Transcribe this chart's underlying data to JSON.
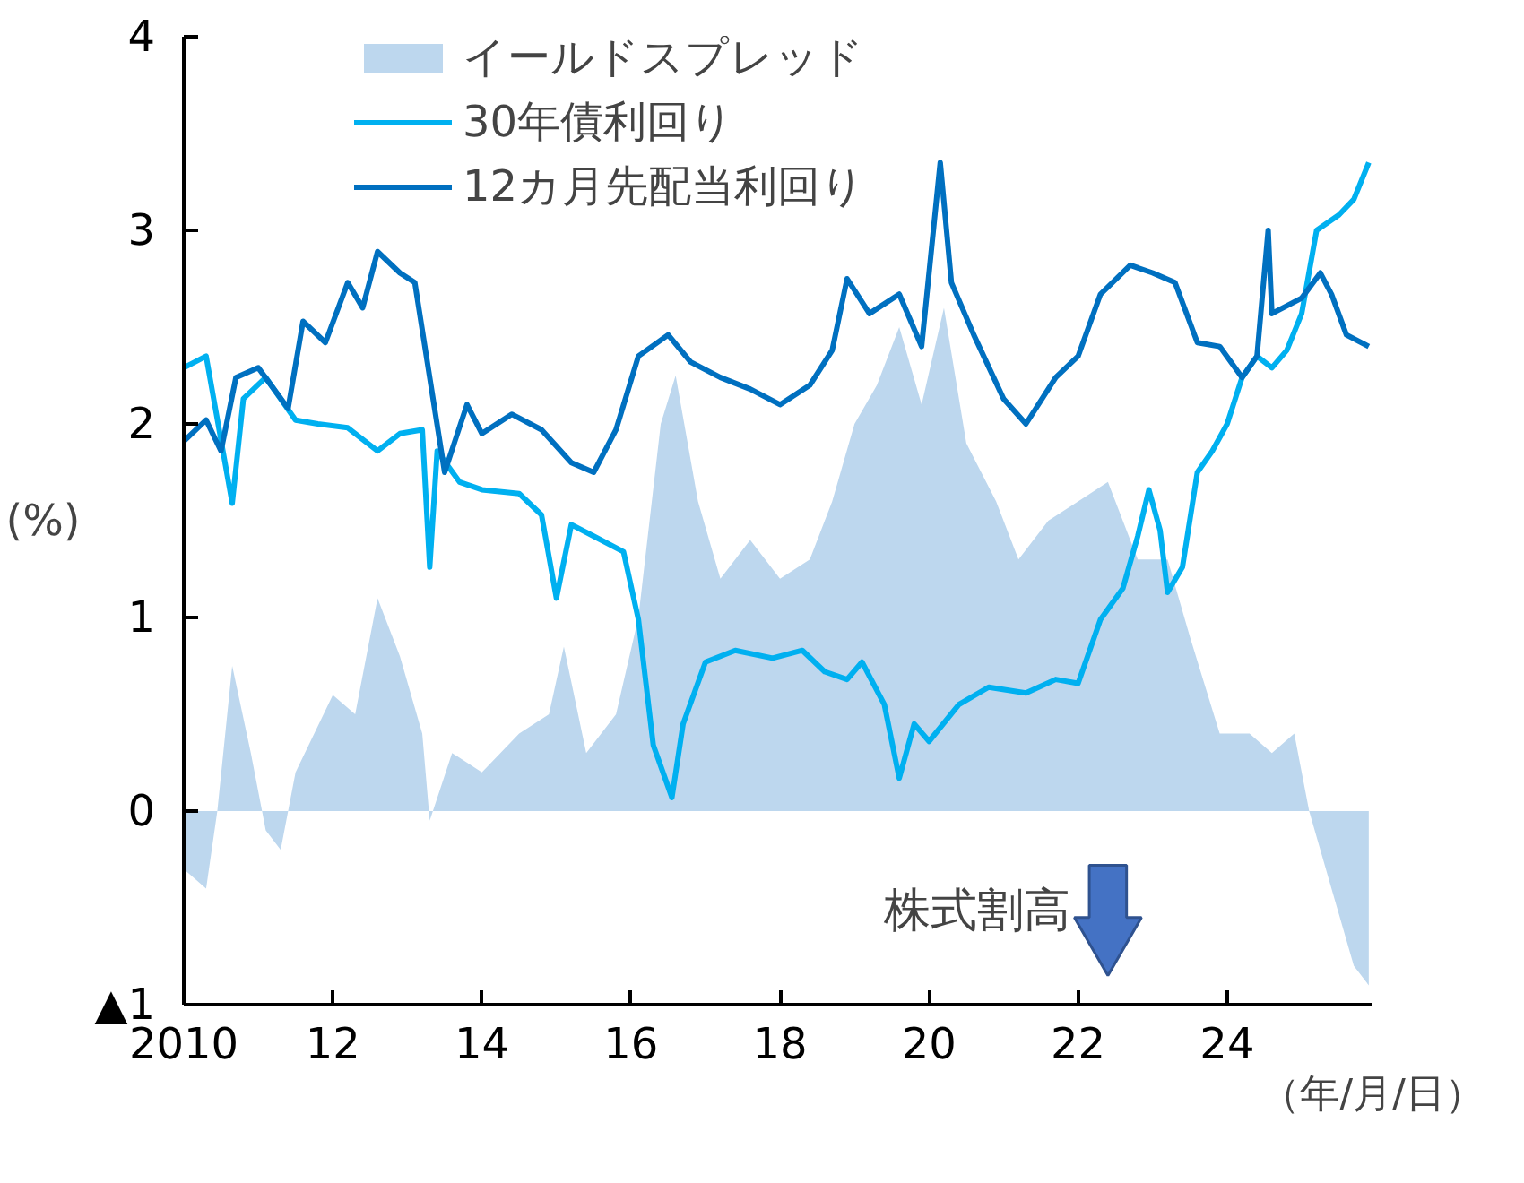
{
  "chart_data": {
    "type": "line",
    "ylabel": "(%)",
    "xlim": [
      2010,
      2025.95
    ],
    "ylim": [
      -1,
      4
    ],
    "xticks": [
      {
        "value": 2010,
        "label": "2010"
      },
      {
        "value": 2012,
        "label": "12"
      },
      {
        "value": 2014,
        "label": "14"
      },
      {
        "value": 2016,
        "label": "16"
      },
      {
        "value": 2018,
        "label": "18"
      },
      {
        "value": 2020,
        "label": "20"
      },
      {
        "value": 2022,
        "label": "22"
      },
      {
        "value": 2024,
        "label": "24"
      }
    ],
    "yticks": [
      {
        "value": -1,
        "label": "▲1"
      },
      0,
      1,
      2,
      3,
      4
    ],
    "grid": false,
    "legend": "top",
    "line_style": "solid",
    "marker": "none",
    "annotations": [
      "株式割高",
      "（年/月/日）"
    ],
    "series": [
      {
        "name": "イールドスプレッド",
        "type": "area",
        "color": "#bdd7ee",
        "x": [
          2010.0,
          2010.3,
          2010.45,
          2010.65,
          2010.9,
          2011.1,
          2011.3,
          2011.5,
          2012.0,
          2012.3,
          2012.6,
          2012.9,
          2013.2,
          2013.3,
          2013.6,
          2014.0,
          2014.5,
          2014.9,
          2015.1,
          2015.4,
          2015.8,
          2016.1,
          2016.4,
          2016.6,
          2016.9,
          2017.2,
          2017.6,
          2018.0,
          2018.4,
          2018.7,
          2019.0,
          2019.3,
          2019.6,
          2019.9,
          2020.2,
          2020.5,
          2020.9,
          2021.2,
          2021.6,
          2022.0,
          2022.4,
          2022.8,
          2023.2,
          2023.5,
          2023.9,
          2024.3,
          2024.6,
          2024.9,
          2025.1,
          2025.4,
          2025.7,
          2025.9
        ],
        "values": [
          -0.3,
          -0.4,
          0.0,
          0.75,
          0.3,
          -0.1,
          -0.2,
          0.2,
          0.6,
          0.5,
          1.1,
          0.8,
          0.4,
          -0.05,
          0.3,
          0.2,
          0.4,
          0.5,
          0.85,
          0.3,
          0.5,
          1.0,
          2.0,
          2.25,
          1.6,
          1.2,
          1.4,
          1.2,
          1.3,
          1.6,
          2.0,
          2.2,
          2.5,
          2.1,
          2.6,
          1.9,
          1.6,
          1.3,
          1.5,
          1.6,
          1.7,
          1.3,
          1.3,
          0.9,
          0.4,
          0.4,
          0.3,
          0.4,
          0.0,
          -0.4,
          -0.8,
          -0.9
        ]
      },
      {
        "name": "30年債利回り",
        "color": "#00b0f0",
        "x": [
          2010.0,
          2010.3,
          2010.65,
          2010.8,
          2011.1,
          2011.5,
          2011.8,
          2012.2,
          2012.6,
          2012.9,
          2013.2,
          2013.3,
          2013.4,
          2013.7,
          2014.0,
          2014.5,
          2014.8,
          2015.0,
          2015.2,
          2015.5,
          2015.9,
          2016.1,
          2016.3,
          2016.55,
          2016.7,
          2017.0,
          2017.4,
          2017.9,
          2018.3,
          2018.6,
          2018.9,
          2019.1,
          2019.4,
          2019.6,
          2019.8,
          2020.0,
          2020.4,
          2020.8,
          2021.3,
          2021.7,
          2022.0,
          2022.3,
          2022.6,
          2022.8,
          2022.95,
          2023.1,
          2023.2,
          2023.4,
          2023.6,
          2023.8,
          2024.0,
          2024.2,
          2024.4,
          2024.6,
          2024.8,
          2025.0,
          2025.2,
          2025.5,
          2025.7,
          2025.9
        ],
        "values": [
          2.29,
          2.35,
          1.59,
          2.13,
          2.24,
          2.02,
          2.0,
          1.98,
          1.86,
          1.95,
          1.97,
          1.26,
          1.86,
          1.7,
          1.66,
          1.64,
          1.53,
          1.1,
          1.48,
          1.42,
          1.34,
          0.99,
          0.34,
          0.07,
          0.45,
          0.77,
          0.83,
          0.79,
          0.83,
          0.72,
          0.68,
          0.77,
          0.55,
          0.17,
          0.45,
          0.36,
          0.55,
          0.64,
          0.61,
          0.68,
          0.66,
          0.99,
          1.15,
          1.42,
          1.66,
          1.45,
          1.13,
          1.26,
          1.75,
          1.86,
          2.0,
          2.24,
          2.35,
          2.29,
          2.38,
          2.57,
          3.0,
          3.08,
          3.16,
          3.35
        ]
      },
      {
        "name": "12カ月先配当利回り",
        "color": "#0070c0",
        "x": [
          2010.0,
          2010.3,
          2010.5,
          2010.7,
          2011.0,
          2011.4,
          2011.6,
          2011.9,
          2012.2,
          2012.4,
          2012.6,
          2012.9,
          2013.1,
          2013.3,
          2013.5,
          2013.8,
          2014.0,
          2014.4,
          2014.8,
          2015.2,
          2015.5,
          2015.8,
          2016.1,
          2016.5,
          2016.8,
          2017.2,
          2017.6,
          2018.0,
          2018.4,
          2018.7,
          2018.9,
          2019.2,
          2019.6,
          2019.9,
          2020.15,
          2020.3,
          2020.6,
          2021.0,
          2021.3,
          2021.7,
          2022.0,
          2022.3,
          2022.7,
          2023.0,
          2023.3,
          2023.6,
          2023.9,
          2024.2,
          2024.4,
          2024.55,
          2024.6,
          2025.0,
          2025.25,
          2025.4,
          2025.6,
          2025.9
        ],
        "values": [
          1.91,
          2.02,
          1.86,
          2.24,
          2.29,
          2.08,
          2.53,
          2.42,
          2.73,
          2.6,
          2.89,
          2.78,
          2.73,
          2.24,
          1.75,
          2.1,
          1.95,
          2.05,
          1.97,
          1.8,
          1.75,
          1.97,
          2.35,
          2.46,
          2.32,
          2.24,
          2.18,
          2.1,
          2.2,
          2.38,
          2.75,
          2.57,
          2.67,
          2.4,
          3.35,
          2.73,
          2.46,
          2.13,
          2.0,
          2.24,
          2.35,
          2.67,
          2.82,
          2.78,
          2.73,
          2.42,
          2.4,
          2.24,
          2.35,
          3.0,
          2.57,
          2.65,
          2.78,
          2.67,
          2.46,
          2.4
        ]
      }
    ]
  }
}
